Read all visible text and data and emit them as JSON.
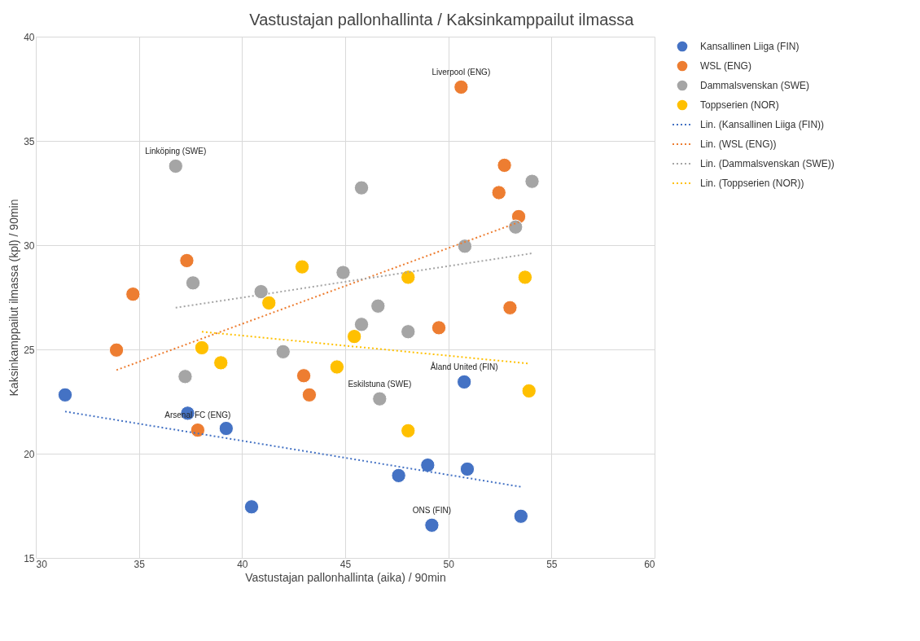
{
  "chart_data": {
    "type": "scatter",
    "title": "Vastustajan pallonhallinta / Kaksinkamppailut ilmassa",
    "xlabel": "Vastustajan pallonhallinta (aika) / 90min",
    "ylabel": "Kaksinkamppailut ilmassa (kpl) / 90min",
    "xlim": [
      30,
      60
    ],
    "ylim": [
      15,
      40
    ],
    "xticks": [
      30,
      35,
      40,
      45,
      50,
      55,
      60
    ],
    "yticks": [
      15,
      20,
      25,
      30,
      35,
      40
    ],
    "grid": true,
    "legend": "right",
    "marker": "circle",
    "series": [
      {
        "name": "Kansallinen Liiga (FIN)",
        "color": "#4472c4",
        "x": [
          31.42,
          37.36,
          39.23,
          40.46,
          47.59,
          49.0,
          50.92,
          50.77,
          49.2,
          53.52
        ],
        "values": [
          22.82,
          21.94,
          21.21,
          17.45,
          18.95,
          19.45,
          19.26,
          23.44,
          16.57,
          17.0
        ]
      },
      {
        "name": "WSL (ENG)",
        "color": "#ed7d31",
        "x": [
          50.62,
          52.72,
          52.45,
          53.41,
          52.99,
          49.54,
          37.32,
          34.71,
          33.91,
          37.85,
          42.99,
          43.26
        ],
        "values": [
          37.58,
          33.83,
          32.52,
          31.37,
          27.0,
          26.04,
          29.26,
          27.65,
          24.97,
          21.13,
          23.74,
          22.82
        ]
      },
      {
        "name": "Dammalsvenskan (SWE)",
        "color": "#a5a5a5",
        "x": [
          36.78,
          37.62,
          37.24,
          40.92,
          41.99,
          44.9,
          45.79,
          45.79,
          46.59,
          48.05,
          46.67,
          50.8,
          53.26,
          54.06
        ],
        "values": [
          33.79,
          28.19,
          23.7,
          27.77,
          24.89,
          28.69,
          32.75,
          26.2,
          27.08,
          25.85,
          22.63,
          29.95,
          30.87,
          33.06
        ]
      },
      {
        "name": "Toppserien (NOR)",
        "color": "#ffc000",
        "x": [
          42.91,
          41.3,
          38.05,
          38.97,
          44.6,
          45.44,
          48.05,
          48.05,
          53.72,
          53.91
        ],
        "values": [
          28.96,
          27.23,
          25.08,
          24.36,
          24.16,
          25.62,
          28.46,
          21.1,
          28.46,
          23.01
        ]
      },
      {
        "name": "Lin. (Kansallinen Liiga (FIN))",
        "type": "line",
        "line_style": "dotted",
        "marker": "none",
        "color": "#4472c4",
        "x": [
          31.42,
          53.52
        ],
        "values": [
          22.02,
          18.41
        ]
      },
      {
        "name": "Lin. (WSL (ENG))",
        "type": "line",
        "line_style": "dotted",
        "marker": "none",
        "color": "#ed7d31",
        "x": [
          33.91,
          53.41
        ],
        "values": [
          24.01,
          31.1
        ]
      },
      {
        "name": "Lin. (Dammalsvenskan (SWE))",
        "type": "line",
        "line_style": "dotted",
        "marker": "none",
        "color": "#a5a5a5",
        "x": [
          36.78,
          54.06
        ],
        "values": [
          27.0,
          29.61
        ]
      },
      {
        "name": "Lin. (Toppserien (NOR))",
        "type": "line",
        "line_style": "dotted",
        "marker": "none",
        "color": "#ffc000",
        "x": [
          38.05,
          53.91
        ],
        "values": [
          25.85,
          24.32
        ]
      }
    ],
    "annotations": [
      {
        "text": "Liverpool (ENG)",
        "x": 50.62,
        "y": 37.58
      },
      {
        "text": "Linköping (SWE)",
        "x": 36.78,
        "y": 33.79
      },
      {
        "text": "Åland United (FIN)",
        "x": 50.77,
        "y": 23.44
      },
      {
        "text": "Eskilstuna (SWE)",
        "x": 46.67,
        "y": 22.63
      },
      {
        "text": "Arsenal FC (ENG)",
        "x": 37.85,
        "y": 21.13
      },
      {
        "text": "ONS (FIN)",
        "x": 49.2,
        "y": 16.57
      }
    ]
  }
}
